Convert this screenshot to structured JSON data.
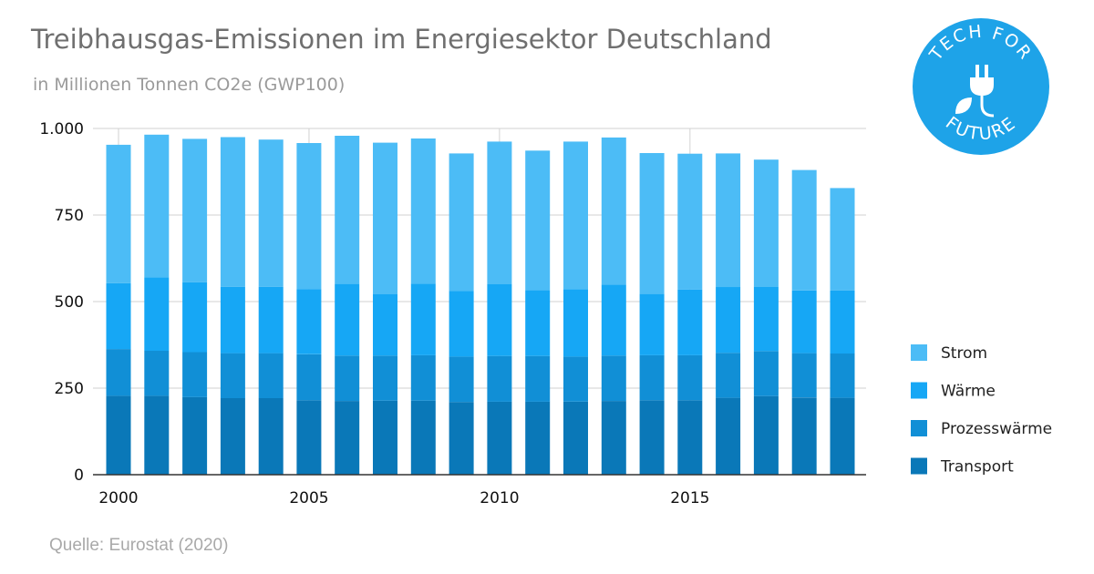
{
  "title": "Treibhausgas-Emissionen im Energiesektor Deutschland",
  "subtitle": "in Millionen Tonnen CO2e (GWP100)",
  "source": "Quelle: Eurostat (2020)",
  "logo": {
    "top_text": "TECH FOR",
    "bottom_text": "FUTURE",
    "icon": "plug-leaf-icon",
    "color": "#1ea3e8"
  },
  "chart_data": {
    "type": "bar",
    "stacked": true,
    "categories": [
      "2000",
      "2001",
      "2002",
      "2003",
      "2004",
      "2005",
      "2006",
      "2007",
      "2008",
      "2009",
      "2010",
      "2011",
      "2012",
      "2013",
      "2014",
      "2015",
      "2016",
      "2017",
      "2018",
      "2019"
    ],
    "x_tick_labels": [
      "2000",
      "2005",
      "2010",
      "2015"
    ],
    "y_tick_labels": [
      "0",
      "250",
      "500",
      "750",
      "1.000"
    ],
    "y_ticks": [
      0,
      250,
      500,
      750,
      1000
    ],
    "ylim": [
      0,
      1000
    ],
    "xlabel": "",
    "ylabel": "",
    "grid": true,
    "legend_position": "right",
    "series": [
      {
        "name": "Transport",
        "color": "#0a78b8",
        "values": [
          228,
          228,
          224,
          221,
          221,
          215,
          213,
          214,
          214,
          210,
          211,
          211,
          211,
          213,
          215,
          215,
          222,
          227,
          223,
          222
        ]
      },
      {
        "name": "Prozesswärme",
        "color": "#118fd6",
        "values": [
          135,
          130,
          130,
          130,
          130,
          133,
          131,
          130,
          131,
          131,
          132,
          132,
          130,
          131,
          130,
          130,
          130,
          130,
          128,
          128
        ]
      },
      {
        "name": "Wärme",
        "color": "#16a7f5",
        "values": [
          190,
          212,
          202,
          192,
          192,
          188,
          207,
          177,
          207,
          190,
          207,
          190,
          195,
          205,
          177,
          190,
          190,
          185,
          181,
          182
        ]
      },
      {
        "name": "Strom",
        "color": "#4cbcf6",
        "values": [
          400,
          412,
          414,
          432,
          425,
          422,
          428,
          438,
          419,
          397,
          412,
          403,
          426,
          425,
          407,
          392,
          386,
          368,
          348,
          296
        ]
      }
    ]
  }
}
